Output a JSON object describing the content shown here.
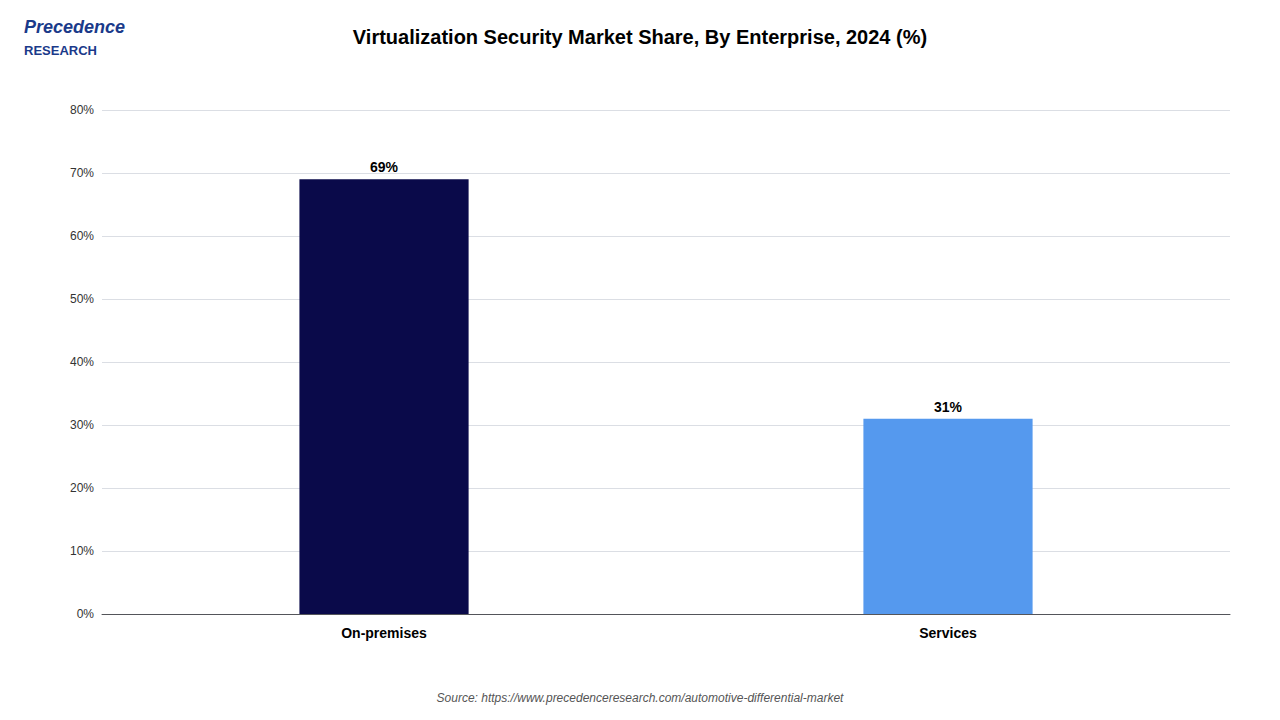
{
  "chart_data": {
    "type": "bar",
    "title": "Virtualization Security Market Share, By Enterprise, 2024 (%)",
    "categories": [
      "On-premises",
      "Services"
    ],
    "values": [
      69,
      31
    ],
    "value_labels": [
      "69%",
      "31%"
    ],
    "data_labels": true,
    "colors": [
      "#0a0a4a",
      "#5599ee"
    ],
    "ylim": [
      0,
      80
    ],
    "yticks": [
      {
        "value": 0,
        "label": "0%"
      },
      {
        "value": 10,
        "label": "10%"
      },
      {
        "value": 20,
        "label": "20%"
      },
      {
        "value": 30,
        "label": "30%"
      },
      {
        "value": 40,
        "label": "40%"
      },
      {
        "value": 50,
        "label": "50%"
      },
      {
        "value": 60,
        "label": "60%"
      },
      {
        "value": 70,
        "label": "70%"
      },
      {
        "value": 80,
        "label": "80%"
      }
    ],
    "grid": true,
    "annotations": [
      "Precedence",
      "RESEARCH",
      "Source: https://www.precedenceresearch.com/automotive-differential-market"
    ]
  }
}
